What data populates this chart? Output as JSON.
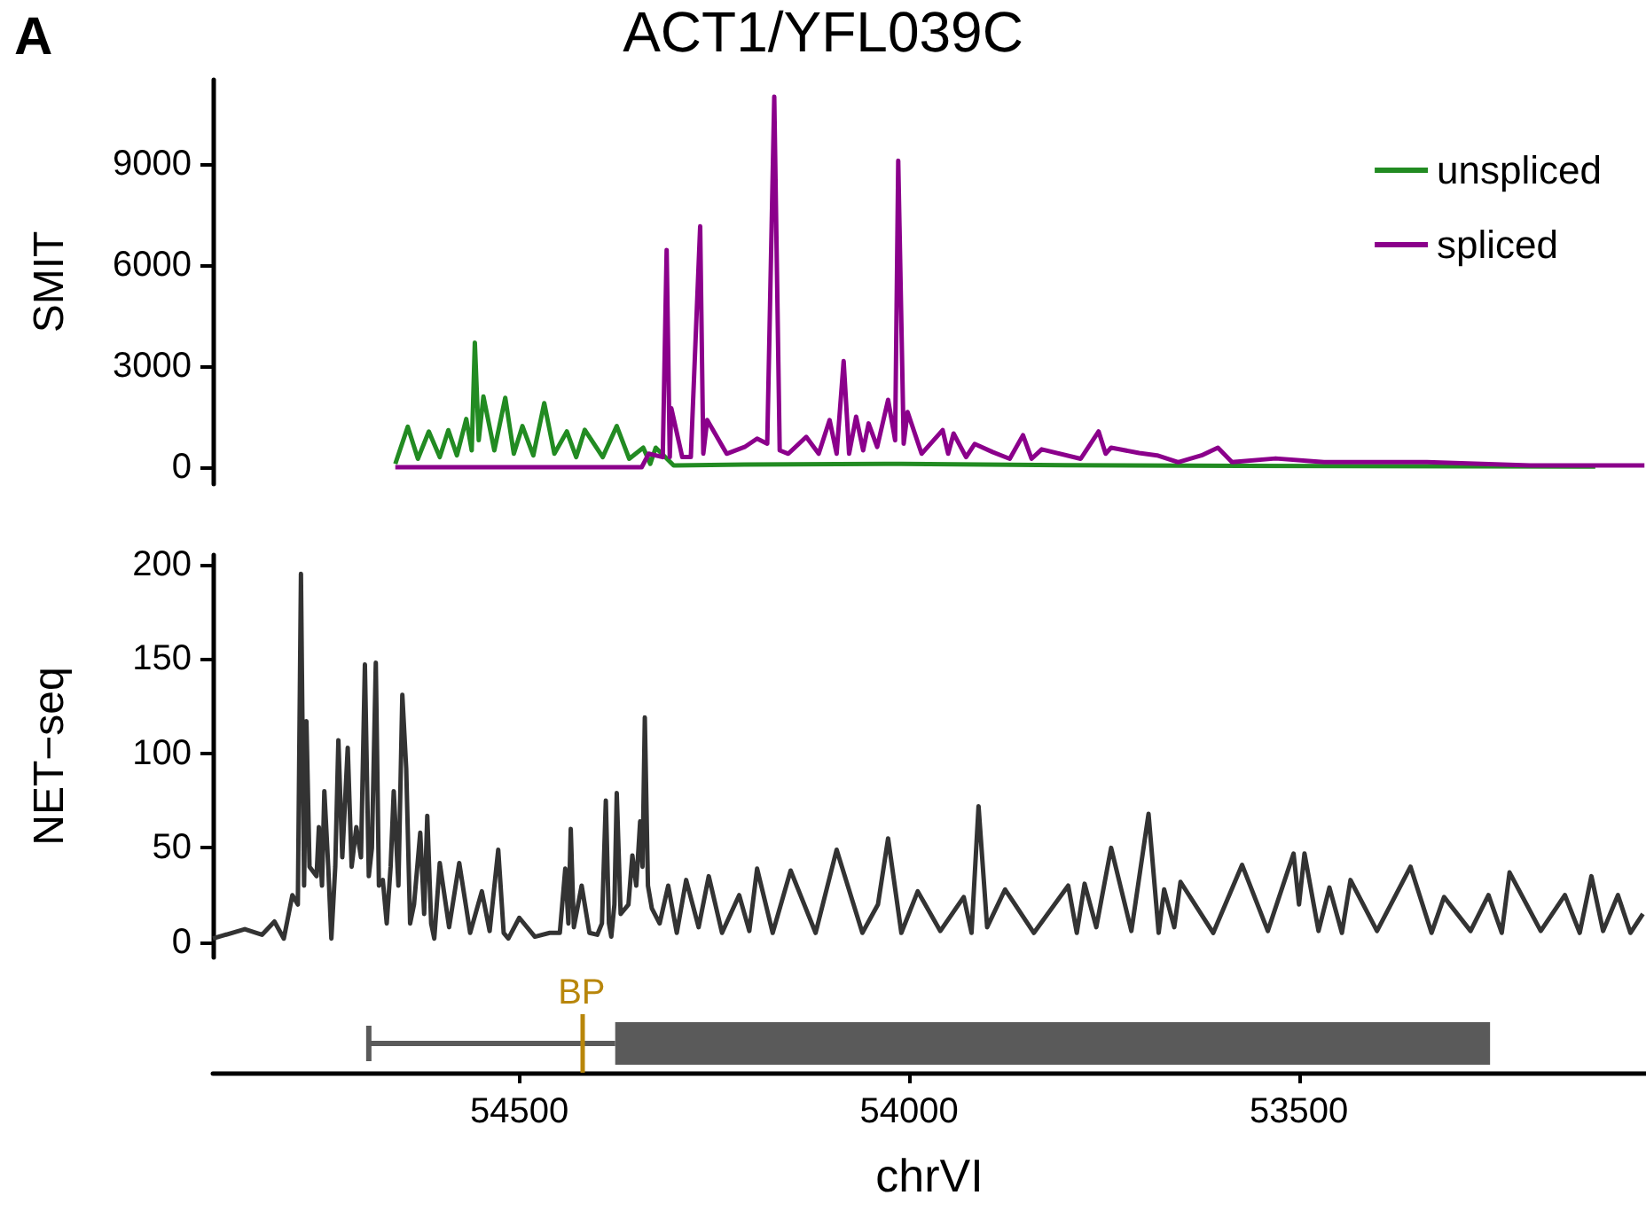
{
  "chart_data": [
    {
      "type": "line",
      "title": "ACT1/YFL039C",
      "ylabel": "SMIT",
      "annotations": [
        "A"
      ],
      "xlim": [
        54893,
        53055
      ],
      "ylim": [
        -500,
        11500
      ],
      "yticks": [
        0,
        3000,
        6000,
        9000
      ],
      "tick_labels": "y",
      "legend": "top right",
      "grid": false,
      "series": [
        {
          "name": "unspliced",
          "color": "#228b22",
          "x": [
            54659,
            54643,
            54630,
            54616,
            54602,
            54591,
            54580,
            54568,
            54561,
            54557,
            54552,
            54546,
            54532,
            54518,
            54507,
            54496,
            54482,
            54468,
            54455,
            54439,
            54427,
            54416,
            54393,
            54375,
            54359,
            54341,
            54332,
            54325,
            54302,
            54211,
            54030,
            53800,
            53575,
            53120
          ],
          "values": [
            100,
            1200,
            250,
            1060,
            300,
            1100,
            350,
            1430,
            500,
            3700,
            800,
            2100,
            500,
            2060,
            400,
            1220,
            350,
            1900,
            400,
            1060,
            300,
            1110,
            300,
            1220,
            250,
            580,
            100,
            580,
            50,
            80,
            100,
            60,
            40,
            20
          ]
        },
        {
          "name": "spliced",
          "color": "#8b008b",
          "x": [
            54659,
            54343,
            54334,
            54316,
            54311,
            54307,
            54305,
            54291,
            54280,
            54268,
            54264,
            54259,
            54234,
            54211,
            54195,
            54182,
            54173,
            54166,
            54155,
            54132,
            54116,
            54102,
            54093,
            54084,
            54077,
            54068,
            54059,
            54052,
            54041,
            54027,
            54018,
            54014,
            54007,
            54002,
            53984,
            53957,
            53950,
            53943,
            53927,
            53916,
            53893,
            53871,
            53854,
            53843,
            53830,
            53780,
            53757,
            53748,
            53741,
            53705,
            53682,
            53655,
            53625,
            53604,
            53586,
            53530,
            53468,
            53336,
            53204,
            53057
          ],
          "values": [
            0,
            0,
            400,
            300,
            6450,
            300,
            1750,
            300,
            300,
            7150,
            400,
            1400,
            400,
            600,
            850,
            700,
            11000,
            500,
            400,
            900,
            400,
            1400,
            400,
            3150,
            400,
            1500,
            500,
            1300,
            600,
            2000,
            800,
            9100,
            700,
            1640,
            400,
            1100,
            400,
            1000,
            300,
            690,
            450,
            250,
            950,
            250,
            530,
            250,
            1060,
            400,
            580,
            420,
            350,
            150,
            350,
            580,
            150,
            260,
            150,
            150,
            50,
            50
          ]
        }
      ]
    },
    {
      "type": "line",
      "ylabel": "NET−seq",
      "xlim": [
        54893,
        53055
      ],
      "ylim": [
        -8,
        205
      ],
      "yticks": [
        0,
        50,
        100,
        150,
        200
      ],
      "tick_labels": "y",
      "grid": false,
      "series": [
        {
          "color": "#333333",
          "x": [
            54893,
            54852,
            54830,
            54814,
            54802,
            54791,
            54784,
            54780,
            54776,
            54773,
            54769,
            54760,
            54757,
            54753,
            54750,
            54745,
            54741,
            54736,
            54732,
            54727,
            54720,
            54715,
            54709,
            54703,
            54698,
            54693,
            54689,
            54684,
            54680,
            54675,
            54670,
            54665,
            54661,
            54655,
            54650,
            54645,
            54640,
            54635,
            54627,
            54622,
            54618,
            54613,
            54609,
            54602,
            54590,
            54577,
            54563,
            54548,
            54538,
            54527,
            54520,
            54514,
            54500,
            54480,
            54461,
            54448,
            54441,
            54437,
            54434,
            54430,
            54420,
            54410,
            54400,
            54394,
            54389,
            54385,
            54382,
            54378,
            54375,
            54370,
            54360,
            54355,
            54350,
            54345,
            54342,
            54339,
            54335,
            54330,
            54320,
            54309,
            54298,
            54286,
            54270,
            54257,
            54240,
            54218,
            54205,
            54195,
            54175,
            54152,
            54120,
            54093,
            54060,
            54040,
            54027,
            54010,
            53989,
            53960,
            53930,
            53920,
            53911,
            53900,
            53877,
            53840,
            53796,
            53785,
            53775,
            53760,
            53741,
            53715,
            53693,
            53680,
            53673,
            53660,
            53652,
            53610,
            53573,
            53540,
            53507,
            53500,
            53493,
            53475,
            53461,
            53445,
            53434,
            53400,
            53357,
            53330,
            53314,
            53280,
            53257,
            53240,
            53230,
            53190,
            53159,
            53140,
            53125,
            53110,
            53091,
            53075,
            53059
          ],
          "values": [
            2,
            7,
            4,
            11,
            2,
            25,
            20,
            195,
            30,
            117,
            40,
            35,
            61,
            30,
            80,
            40,
            2,
            40,
            107,
            45,
            103,
            40,
            61,
            45,
            147,
            35,
            50,
            148,
            30,
            33,
            10,
            40,
            80,
            30,
            131,
            92,
            10,
            20,
            58,
            15,
            67,
            10,
            2,
            42,
            8,
            42,
            5,
            27,
            6,
            49,
            5,
            2,
            13,
            3,
            5,
            5,
            39,
            10,
            60,
            8,
            30,
            5,
            4,
            10,
            75,
            10,
            3,
            20,
            79,
            15,
            20,
            46,
            30,
            64,
            40,
            119,
            30,
            18,
            10,
            30,
            5,
            33,
            8,
            35,
            5,
            25,
            6,
            39,
            5,
            38,
            5,
            49,
            5,
            20,
            55,
            5,
            27,
            6,
            24,
            5,
            72,
            8,
            28,
            5,
            30,
            5,
            31,
            8,
            50,
            6,
            68,
            5,
            28,
            8,
            32,
            5,
            41,
            6,
            47,
            20,
            47,
            6,
            29,
            5,
            33,
            6,
            40,
            5,
            24,
            6,
            25,
            5,
            37,
            6,
            25,
            5,
            35,
            6,
            25,
            5,
            15
          ]
        }
      ]
    },
    {
      "type": "bar",
      "orientation": "horizontal",
      "categories": [
        null
      ],
      "xlabel": "chrVI",
      "xlim": [
        54893,
        53055
      ],
      "xticks": [
        54500,
        54000,
        53500
      ],
      "tick_labels": "x",
      "grid": false,
      "ref_lines": [
        {
          "axis": "x",
          "value": 54420,
          "label": "BP",
          "color": "#b8860b"
        }
      ],
      "series": [
        {
          "color": "#5a5a5a",
          "base": [
            54693
          ],
          "values": [
            -316
          ]
        },
        {
          "color": "#5a5a5a",
          "base": [
            54377
          ],
          "values": [
            -1122
          ]
        }
      ]
    }
  ]
}
